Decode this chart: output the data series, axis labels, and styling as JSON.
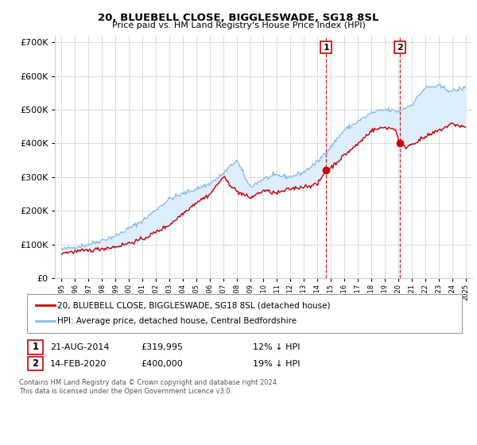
{
  "title": "20, BLUEBELL CLOSE, BIGGLESWADE, SG18 8SL",
  "subtitle": "Price paid vs. HM Land Registry's House Price Index (HPI)",
  "legend_entry1": "20, BLUEBELL CLOSE, BIGGLESWADE, SG18 8SL (detached house)",
  "legend_entry2": "HPI: Average price, detached house, Central Bedfordshire",
  "annotation1_label": "1",
  "annotation1_date": "21-AUG-2014",
  "annotation1_price": "£319,995",
  "annotation1_hpi": "12% ↓ HPI",
  "annotation1_year": 2014.64,
  "annotation1_value": 319995,
  "annotation2_label": "2",
  "annotation2_date": "14-FEB-2020",
  "annotation2_price": "£400,000",
  "annotation2_hpi": "19% ↓ HPI",
  "annotation2_year": 2020.12,
  "annotation2_value": 400000,
  "red_color": "#cc0000",
  "blue_color": "#88bbdd",
  "shade_color": "#ddeeff",
  "grid_color": "#cccccc",
  "footer_text": "Contains HM Land Registry data © Crown copyright and database right 2024.\nThis data is licensed under the Open Government Licence v3.0.",
  "xlim_left": 1994.5,
  "xlim_right": 2025.5,
  "ylim_bottom": 0,
  "ylim_top": 720000,
  "hpi_anchors_years": [
    1995,
    1997,
    1999,
    2001,
    2003,
    2005,
    2006,
    2007,
    2008,
    2009,
    2010,
    2011,
    2012,
    2013,
    2014,
    2015,
    2016,
    2017,
    2018,
    2019,
    2020,
    2021,
    2022,
    2023,
    2024,
    2025
  ],
  "hpi_anchors_vals": [
    85000,
    100000,
    125000,
    170000,
    235000,
    265000,
    280000,
    310000,
    350000,
    270000,
    295000,
    305000,
    300000,
    315000,
    345000,
    390000,
    440000,
    465000,
    490000,
    500000,
    495000,
    515000,
    565000,
    570000,
    555000,
    565000
  ],
  "red_anchors_years": [
    1995,
    1997,
    1999,
    2001,
    2003,
    2005,
    2006,
    2007,
    2008,
    2009,
    2010,
    2011,
    2012,
    2013,
    2014,
    2014.64,
    2015,
    2016,
    2017,
    2018,
    2019,
    2019.8,
    2020.12,
    2020.5,
    2021,
    2022,
    2023,
    2024,
    2025
  ],
  "red_anchors_vals": [
    75000,
    82000,
    93000,
    115000,
    158000,
    225000,
    248000,
    300000,
    258000,
    238000,
    260000,
    252000,
    265000,
    272000,
    278000,
    319995,
    328000,
    365000,
    398000,
    438000,
    448000,
    442000,
    400000,
    388000,
    398000,
    418000,
    438000,
    458000,
    448000
  ]
}
